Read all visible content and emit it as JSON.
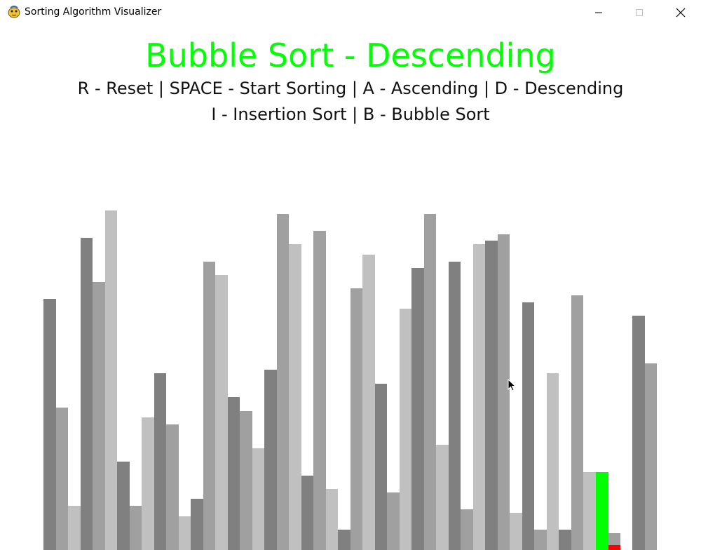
{
  "window": {
    "title": "Sorting Algorithm Visualizer",
    "controls": [
      "minimize",
      "maximize",
      "close"
    ]
  },
  "app_icon": "pygame-snake-icon",
  "heading": "Bubble Sort - Descending",
  "help_lines": [
    "R - Reset | SPACE - Start Sorting | A - Ascending | D - Descending",
    "I - Insertion Sort | B - Bubble Sort"
  ],
  "colors": {
    "heading": "#00ff00",
    "bar_shades": [
      "#808080",
      "#a0a0a0",
      "#c0c0c0"
    ],
    "compare_a": "#00ff00",
    "compare_b": "#ff0000"
  },
  "bars": {
    "max_value": 100,
    "values": [
      74,
      42,
      13,
      92,
      79,
      100,
      26,
      13,
      39,
      52,
      37,
      10,
      15,
      85,
      81,
      45,
      41,
      30,
      53,
      99,
      90,
      22,
      94,
      18,
      6,
      77,
      87,
      49,
      17,
      71,
      83,
      99,
      31,
      85,
      12,
      90,
      91,
      93,
      11,
      73,
      6,
      52,
      6,
      75,
      23,
      0,
      5,
      0,
      69,
      55
    ],
    "highlight": {
      "45": "compare_a",
      "46": "compare_b"
    },
    "compare_values": [
      23,
      1.5
    ]
  }
}
